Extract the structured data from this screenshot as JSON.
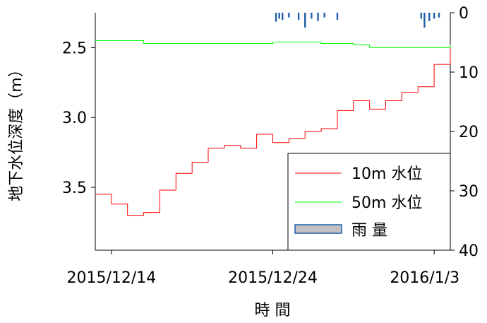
{
  "chart_data": {
    "type": "line",
    "xlabel": "時 間",
    "ylabel": "地下水位深度（m）",
    "y2label": "",
    "x_range": [
      "2015/12/13",
      "2016/1/4"
    ],
    "x_ticks": [
      "2015/12/14",
      "2015/12/24",
      "2016/1/3"
    ],
    "ylim": [
      3.95,
      2.25
    ],
    "y_ticks": [
      "2.5",
      "3.0",
      "3.5"
    ],
    "y_inverted": true,
    "y2lim": [
      0,
      40
    ],
    "y2_ticks": [
      "0",
      "10",
      "20",
      "30",
      "40"
    ],
    "legend_position": "bottom-right",
    "legend": [
      {
        "label": "10m 水位",
        "color": "#ff0000",
        "type": "line"
      },
      {
        "label": "50m 水位",
        "color": "#00ff00",
        "type": "line"
      },
      {
        "label": "雨 量",
        "color": "#c0c0c0",
        "border": "#1f5fa8",
        "type": "bar"
      }
    ],
    "series": [
      {
        "name": "10m 水位",
        "axis": "left",
        "color": "#ff0000",
        "x": [
          "2015/12/13",
          "2015/12/14",
          "2015/12/15",
          "2015/12/16",
          "2015/12/17",
          "2015/12/18",
          "2015/12/19",
          "2015/12/20",
          "2015/12/21",
          "2015/12/22",
          "2015/12/23",
          "2015/12/24",
          "2015/12/25",
          "2015/12/26",
          "2015/12/27",
          "2015/12/28",
          "2015/12/29",
          "2015/12/30",
          "2015/12/31",
          "2016/1/1",
          "2016/1/2",
          "2016/1/3",
          "2016/1/4"
        ],
        "values": [
          3.55,
          3.62,
          3.7,
          3.68,
          3.52,
          3.4,
          3.32,
          3.22,
          3.2,
          3.22,
          3.12,
          3.18,
          3.15,
          3.1,
          3.08,
          2.95,
          2.88,
          2.94,
          2.88,
          2.82,
          2.78,
          2.62,
          2.5
        ]
      },
      {
        "name": "50m 水位",
        "axis": "left",
        "color": "#00ff00",
        "x": [
          "2015/12/13",
          "2015/12/15",
          "2015/12/16",
          "2015/12/18",
          "2015/12/20",
          "2015/12/22",
          "2015/12/24",
          "2015/12/26",
          "2015/12/27",
          "2015/12/29",
          "2015/12/30",
          "2016/1/1",
          "2016/1/2",
          "2016/1/4"
        ],
        "values": [
          2.45,
          2.45,
          2.47,
          2.47,
          2.47,
          2.47,
          2.46,
          2.46,
          2.47,
          2.48,
          2.5,
          2.5,
          2.5,
          2.48
        ]
      },
      {
        "name": "雨 量",
        "axis": "right",
        "type": "bar",
        "color": "#1f5fa8",
        "x": [
          "2015/12/24.2",
          "2015/12/24.4",
          "2015/12/24.6",
          "2015/12/25.0",
          "2015/12/25.6",
          "2015/12/26.0",
          "2015/12/26.4",
          "2015/12/26.8",
          "2015/12/27.2",
          "2015/12/28.0",
          "2016/1/2.2",
          "2016/1/2.4",
          "2016/1/2.7",
          "2016/1/3.0",
          "2016/1/3.3"
        ],
        "values": [
          1.5,
          1.0,
          1.2,
          0.8,
          1.2,
          2.5,
          1.0,
          1.4,
          0.8,
          1.2,
          1.0,
          2.5,
          1.4,
          1.0,
          0.8
        ]
      }
    ]
  }
}
